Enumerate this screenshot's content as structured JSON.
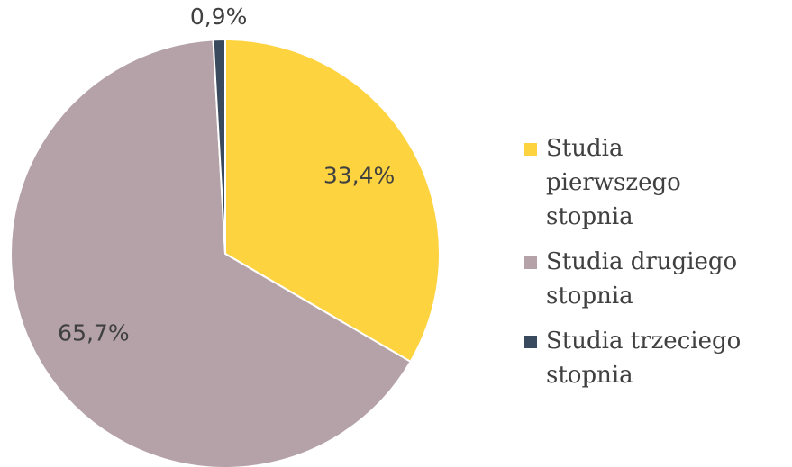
{
  "chart_data": {
    "type": "pie",
    "categories": [
      "Studia pierwszego stopnia",
      "Studia drugiego stopnia",
      "Studia trzeciego stopnia"
    ],
    "values": [
      33.4,
      65.7,
      0.9
    ],
    "value_labels": [
      "33,4%",
      "65,7%",
      "0,9%"
    ],
    "colors": [
      "#fdd33f",
      "#b4a2a8",
      "#3a4a5e"
    ],
    "legend": "right"
  }
}
